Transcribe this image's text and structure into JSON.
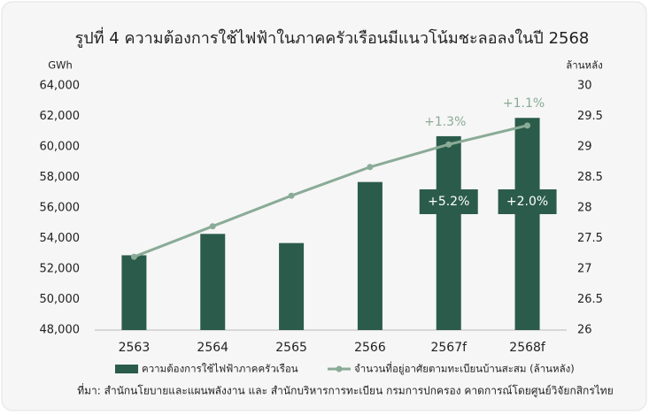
{
  "chart_data": {
    "type": "bar-line",
    "title": "รูปที่ 4 ความต้องการใช้ไฟฟ้าในภาคครัวเรือนมีแนวโน้มชะลอลงในปี 2568",
    "y_label": "GWh",
    "y2_label": "ล้านหลัง",
    "categories": [
      "2563",
      "2564",
      "2565",
      "2566",
      "2567f",
      "2568f"
    ],
    "series": [
      {
        "name": "ความต้องการใช้ไฟฟ้าภาคครัวเรือน",
        "color": "#2b5c4b",
        "type": "bar",
        "values": [
          52900,
          54300,
          53700,
          57700,
          60700,
          61900
        ]
      },
      {
        "name": "จำนวนที่อยู่อาศัยตามทะเบียนบ้านสะสม (ล้านหลัง)",
        "color": "#8aab97",
        "type": "line",
        "axis": "y2",
        "values": [
          27.2,
          27.7,
          28.2,
          28.67,
          29.04,
          29.35
        ]
      }
    ],
    "bar_notes": [
      {
        "category": "2567f",
        "text": "+5.2%"
      },
      {
        "category": "2568f",
        "text": "+2.0%"
      }
    ],
    "line_notes": [
      {
        "category": "2567f",
        "text": "+1.3%"
      },
      {
        "category": "2568f",
        "text": "+1.1%"
      }
    ],
    "ylim": [
      48000,
      64000
    ],
    "yticks": [
      {
        "value": 48000,
        "label": "48,000"
      },
      {
        "value": 50000,
        "label": "50,000"
      },
      {
        "value": 52000,
        "label": "52,000"
      },
      {
        "value": 54000,
        "label": "54,000"
      },
      {
        "value": 56000,
        "label": "56,000"
      },
      {
        "value": 58000,
        "label": "58,000"
      },
      {
        "value": 60000,
        "label": "60,000"
      },
      {
        "value": 62000,
        "label": "62,000"
      },
      {
        "value": 64000,
        "label": "64,000"
      }
    ],
    "y2lim": [
      26,
      30
    ],
    "y2ticks": [
      26,
      26.5,
      27,
      27.5,
      28,
      28.5,
      29,
      29.5,
      30
    ],
    "source": "ที่มา: สำนักนโยบายและแผนพลังงาน และ สำนักบริหารการทะเบียน กรมการปกครอง คาดการณ์โดยศูนย์วิจัยกสิกรไทย"
  }
}
